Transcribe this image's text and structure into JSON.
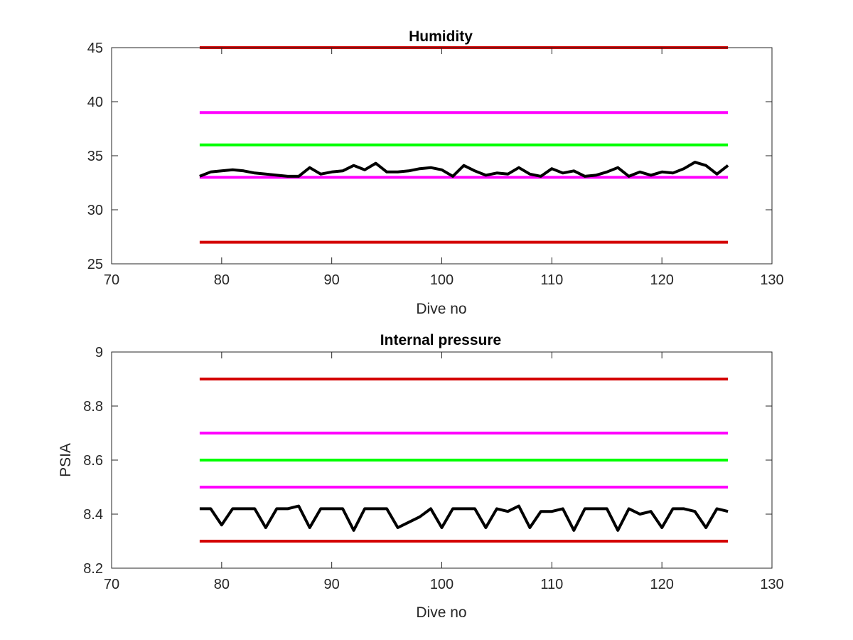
{
  "chart_data": [
    {
      "type": "line",
      "title": "Humidity",
      "xlabel": "Dive no",
      "ylabel": "",
      "xlim": [
        70,
        130
      ],
      "ylim": [
        25,
        45
      ],
      "xticks": [
        70,
        80,
        90,
        100,
        110,
        120,
        130
      ],
      "yticks": [
        25,
        30,
        35,
        40,
        45
      ],
      "grid": false,
      "series": [
        {
          "color": "#d40000",
          "x": [
            78,
            126
          ],
          "y": [
            45,
            45
          ]
        },
        {
          "color": "#ff00ff",
          "x": [
            78,
            126
          ],
          "y": [
            39,
            39
          ]
        },
        {
          "color": "#00ff00",
          "x": [
            78,
            126
          ],
          "y": [
            36,
            36
          ]
        },
        {
          "color": "#ff00ff",
          "x": [
            78,
            126
          ],
          "y": [
            33,
            33
          ]
        },
        {
          "color": "#d40000",
          "x": [
            78,
            126
          ],
          "y": [
            27,
            27
          ]
        },
        {
          "color": "#000000",
          "x": [
            78,
            79,
            80,
            81,
            82,
            83,
            84,
            85,
            86,
            87,
            88,
            89,
            90,
            91,
            92,
            93,
            94,
            95,
            96,
            97,
            98,
            99,
            100,
            101,
            102,
            103,
            104,
            105,
            106,
            107,
            108,
            109,
            110,
            111,
            112,
            113,
            114,
            115,
            116,
            117,
            118,
            119,
            120,
            121,
            122,
            123,
            124,
            125,
            126
          ],
          "y": [
            33.1,
            33.5,
            33.6,
            33.7,
            33.6,
            33.4,
            33.3,
            33.2,
            33.1,
            33.1,
            33.9,
            33.3,
            33.5,
            33.6,
            34.1,
            33.7,
            34.3,
            33.5,
            33.5,
            33.6,
            33.8,
            33.9,
            33.7,
            33.1,
            34.1,
            33.6,
            33.2,
            33.4,
            33.3,
            33.9,
            33.3,
            33.1,
            33.8,
            33.4,
            33.6,
            33.1,
            33.2,
            33.5,
            33.9,
            33.1,
            33.5,
            33.2,
            33.5,
            33.4,
            33.8,
            34.4,
            34.1,
            33.3,
            34.1
          ]
        }
      ]
    },
    {
      "type": "line",
      "title": "Internal pressure",
      "xlabel": "Dive no",
      "ylabel": "PSIA",
      "xlim": [
        70,
        130
      ],
      "ylim": [
        8.2,
        9
      ],
      "xticks": [
        70,
        80,
        90,
        100,
        110,
        120,
        130
      ],
      "yticks": [
        8.2,
        8.4,
        8.6,
        8.8,
        9
      ],
      "grid": false,
      "series": [
        {
          "color": "#d40000",
          "x": [
            78,
            126
          ],
          "y": [
            8.9,
            8.9
          ]
        },
        {
          "color": "#ff00ff",
          "x": [
            78,
            126
          ],
          "y": [
            8.7,
            8.7
          ]
        },
        {
          "color": "#00ff00",
          "x": [
            78,
            126
          ],
          "y": [
            8.6,
            8.6
          ]
        },
        {
          "color": "#ff00ff",
          "x": [
            78,
            126
          ],
          "y": [
            8.5,
            8.5
          ]
        },
        {
          "color": "#d40000",
          "x": [
            78,
            126
          ],
          "y": [
            8.3,
            8.3
          ]
        },
        {
          "color": "#000000",
          "x": [
            78,
            79,
            80,
            81,
            82,
            83,
            84,
            85,
            86,
            87,
            88,
            89,
            90,
            91,
            92,
            93,
            94,
            95,
            96,
            97,
            98,
            99,
            100,
            101,
            102,
            103,
            104,
            105,
            106,
            107,
            108,
            109,
            110,
            111,
            112,
            113,
            114,
            115,
            116,
            117,
            118,
            119,
            120,
            121,
            122,
            123,
            124,
            125,
            126
          ],
          "y": [
            8.42,
            8.42,
            8.36,
            8.42,
            8.42,
            8.42,
            8.35,
            8.42,
            8.42,
            8.43,
            8.35,
            8.42,
            8.42,
            8.42,
            8.34,
            8.42,
            8.42,
            8.42,
            8.35,
            8.37,
            8.39,
            8.42,
            8.35,
            8.42,
            8.42,
            8.42,
            8.35,
            8.42,
            8.41,
            8.43,
            8.35,
            8.41,
            8.41,
            8.42,
            8.34,
            8.42,
            8.42,
            8.42,
            8.34,
            8.42,
            8.4,
            8.41,
            8.35,
            8.42,
            8.42,
            8.41,
            8.35,
            8.42,
            8.41
          ]
        }
      ]
    }
  ]
}
